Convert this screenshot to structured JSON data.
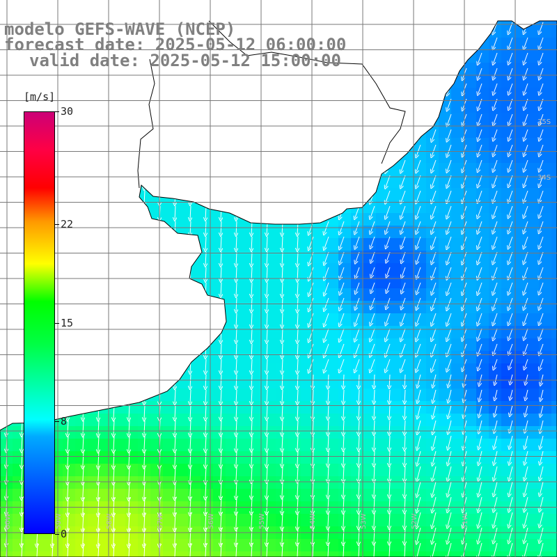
{
  "header": {
    "model": "modelo GEFS-WAVE (NCEP)",
    "forecast": "forecast date: 2025-05-12 06:00:00",
    "valid": "valid date: 2025-05-12 15:00:00"
  },
  "colorbar": {
    "unit": "[m/s]",
    "ticks": [
      {
        "label": "30",
        "value": 30
      },
      {
        "label": "22",
        "value": 22
      },
      {
        "label": "15",
        "value": 15
      },
      {
        "label": "8",
        "value": 8
      },
      {
        "label": "0",
        "value": 0
      }
    ],
    "range": [
      0,
      30
    ]
  },
  "colors": {
    "land": "#ffffff",
    "coast": "#000000",
    "grid": "#777777",
    "arrow": "#ffffff",
    "header_text": "#808080"
  },
  "map": {
    "lat_labels": [
      "35S",
      "34S"
    ],
    "lon_labels": [
      "60W",
      "59W",
      "58W",
      "57W",
      "56W",
      "55W",
      "54W",
      "53W",
      "52W",
      "51W"
    ]
  }
}
